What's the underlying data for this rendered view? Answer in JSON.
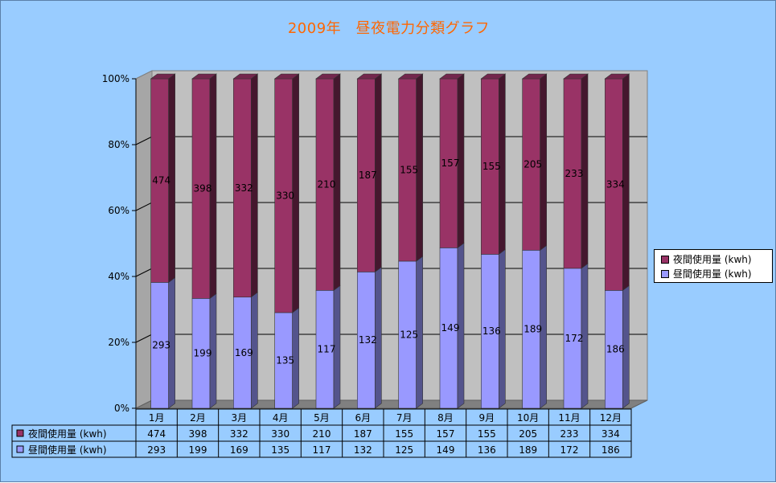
{
  "title": "2009年　昼夜電力分類グラフ",
  "colors": {
    "background": "#99ccff",
    "night": "#993366",
    "day": "#9999ff",
    "plot_bg": "#c0c0c0",
    "floor": "#808080"
  },
  "legend": {
    "night_label": "夜間使用量 (kwh)",
    "day_label": "昼間使用量 (kwh)"
  },
  "chart_data": {
    "type": "bar",
    "stacked": "100%",
    "categories": [
      "1月",
      "2月",
      "3月",
      "4月",
      "5月",
      "6月",
      "7月",
      "8月",
      "9月",
      "10月",
      "11月",
      "12月"
    ],
    "series": [
      {
        "name": "昼間使用量 (kwh)",
        "values": [
          293,
          199,
          169,
          135,
          117,
          132,
          125,
          149,
          136,
          189,
          172,
          186
        ]
      },
      {
        "name": "夜間使用量 (kwh)",
        "values": [
          474,
          398,
          332,
          330,
          210,
          187,
          155,
          157,
          155,
          205,
          233,
          334
        ]
      }
    ],
    "y_ticks": [
      "0%",
      "20%",
      "40%",
      "60%",
      "80%",
      "100%"
    ],
    "ylim": [
      0,
      100
    ],
    "grid": true,
    "legend_position": "right",
    "data_table": true
  }
}
